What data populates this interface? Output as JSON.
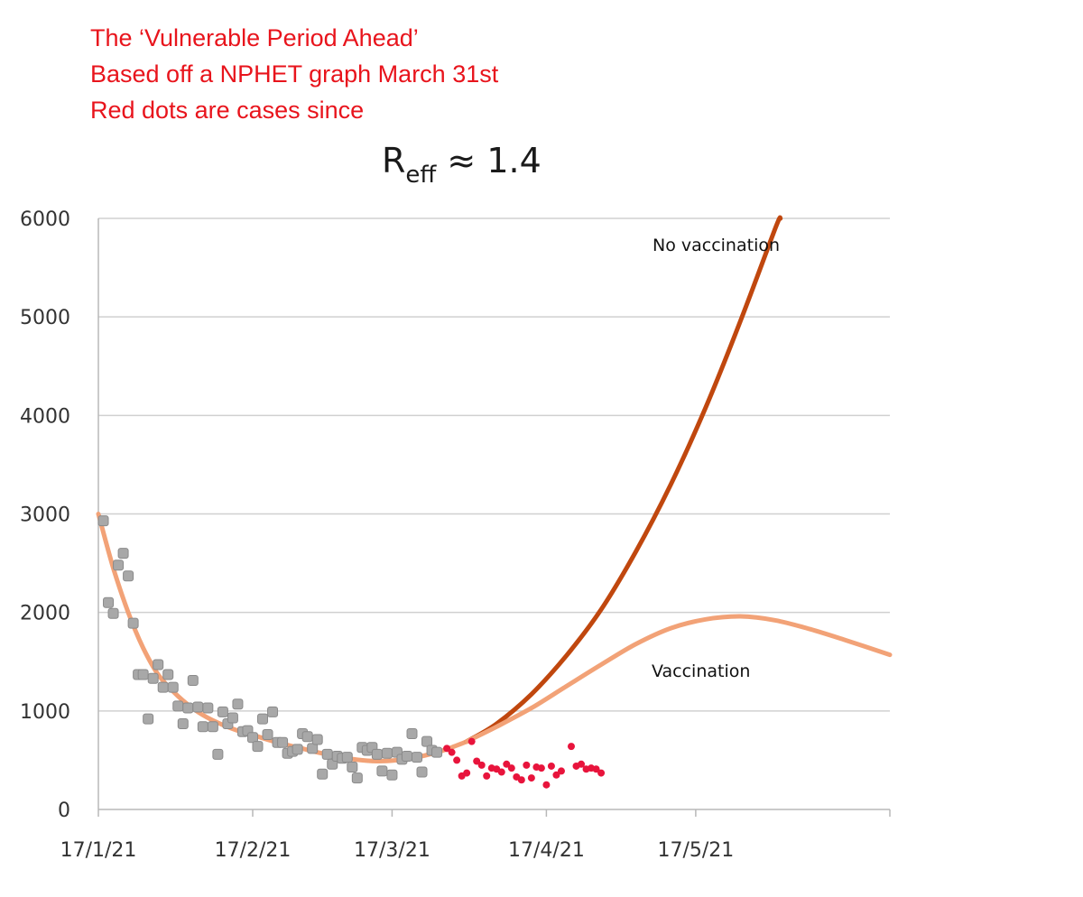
{
  "caption": {
    "line1": "The ‘Vulnerable Period Ahead’",
    "line2": "Based off a NPHET graph March 31st",
    "line3": "Red dots are cases since"
  },
  "colors": {
    "caption": "#e8141c",
    "no_vaccination": "#c0470e",
    "vaccination": "#f2a277",
    "historical_points": "#a8a8a8",
    "recent_points": "#e8143c",
    "grid": "#d0d0d0"
  },
  "chart_data": {
    "type": "scatter",
    "title": "R",
    "title_subscript": "eff",
    "title_suffix": " ≈ 1.4",
    "xlabel": "",
    "ylabel": "",
    "x_axis": "date",
    "xlim": [
      "2021-01-17",
      "2021-06-25"
    ],
    "ylim": [
      0,
      6000
    ],
    "grid": true,
    "x_ticks": [
      {
        "date": "2021-01-17",
        "label": "17/1/21"
      },
      {
        "date": "2021-02-17",
        "label": "17/2/21"
      },
      {
        "date": "2021-03-17",
        "label": "17/3/21"
      },
      {
        "date": "2021-04-17",
        "label": "17/4/21"
      },
      {
        "date": "2021-05-17",
        "label": "17/5/21"
      }
    ],
    "y_ticks": [
      0,
      1000,
      2000,
      3000,
      4000,
      5000,
      6000
    ],
    "annotations": [
      {
        "text": "No vaccination",
        "series": "no_vaccination"
      },
      {
        "text": "Vaccination",
        "series": "vaccination"
      }
    ],
    "series": [
      {
        "key": "model_fit",
        "kind": "line",
        "color": "#f2a277",
        "points": [
          [
            "2021-01-17",
            3000
          ],
          [
            "2021-01-20",
            2450
          ],
          [
            "2021-01-23",
            2000
          ],
          [
            "2021-01-26",
            1640
          ],
          [
            "2021-01-29",
            1370
          ],
          [
            "2021-02-02",
            1150
          ],
          [
            "2021-02-06",
            990
          ],
          [
            "2021-02-10",
            880
          ],
          [
            "2021-02-14",
            800
          ],
          [
            "2021-02-18",
            740
          ],
          [
            "2021-02-22",
            680
          ],
          [
            "2021-02-26",
            630
          ],
          [
            "2021-03-02",
            580
          ],
          [
            "2021-03-06",
            540
          ],
          [
            "2021-03-10",
            505
          ],
          [
            "2021-03-14",
            490
          ],
          [
            "2021-03-18",
            500
          ],
          [
            "2021-03-22",
            530
          ],
          [
            "2021-03-26",
            580
          ],
          [
            "2021-03-29",
            630
          ],
          [
            "2021-04-01",
            690
          ]
        ]
      },
      {
        "key": "no_vaccination",
        "kind": "line",
        "color": "#c0470e",
        "points": [
          [
            "2021-04-01",
            690
          ],
          [
            "2021-04-07",
            870
          ],
          [
            "2021-04-14",
            1170
          ],
          [
            "2021-04-21",
            1560
          ],
          [
            "2021-04-28",
            2030
          ],
          [
            "2021-05-05",
            2620
          ],
          [
            "2021-05-12",
            3300
          ],
          [
            "2021-05-19",
            4080
          ],
          [
            "2021-05-26",
            4960
          ],
          [
            "2021-06-02",
            5900
          ],
          [
            "2021-06-03",
            6000
          ]
        ]
      },
      {
        "key": "vaccination",
        "kind": "line",
        "color": "#f2a277",
        "points": [
          [
            "2021-04-01",
            690
          ],
          [
            "2021-04-07",
            840
          ],
          [
            "2021-04-14",
            1030
          ],
          [
            "2021-04-21",
            1250
          ],
          [
            "2021-04-28",
            1470
          ],
          [
            "2021-05-05",
            1680
          ],
          [
            "2021-05-12",
            1840
          ],
          [
            "2021-05-19",
            1930
          ],
          [
            "2021-05-26",
            1960
          ],
          [
            "2021-06-02",
            1920
          ],
          [
            "2021-06-09",
            1830
          ],
          [
            "2021-06-16",
            1720
          ],
          [
            "2021-06-25",
            1570
          ]
        ]
      },
      {
        "key": "historical_cases",
        "kind": "scatter",
        "color": "#a8a8a8",
        "points": [
          [
            "2021-01-18",
            2930
          ],
          [
            "2021-01-19",
            2100
          ],
          [
            "2021-01-20",
            1990
          ],
          [
            "2021-01-21",
            2480
          ],
          [
            "2021-01-22",
            2600
          ],
          [
            "2021-01-23",
            2370
          ],
          [
            "2021-01-24",
            1890
          ],
          [
            "2021-01-25",
            1370
          ],
          [
            "2021-01-26",
            1370
          ],
          [
            "2021-01-27",
            920
          ],
          [
            "2021-01-28",
            1330
          ],
          [
            "2021-01-29",
            1470
          ],
          [
            "2021-01-30",
            1240
          ],
          [
            "2021-01-31",
            1370
          ],
          [
            "2021-02-01",
            1240
          ],
          [
            "2021-02-02",
            1050
          ],
          [
            "2021-02-03",
            870
          ],
          [
            "2021-02-04",
            1030
          ],
          [
            "2021-02-05",
            1310
          ],
          [
            "2021-02-06",
            1040
          ],
          [
            "2021-02-07",
            840
          ],
          [
            "2021-02-08",
            1030
          ],
          [
            "2021-02-09",
            840
          ],
          [
            "2021-02-10",
            560
          ],
          [
            "2021-02-11",
            990
          ],
          [
            "2021-02-12",
            870
          ],
          [
            "2021-02-13",
            930
          ],
          [
            "2021-02-14",
            1070
          ],
          [
            "2021-02-15",
            790
          ],
          [
            "2021-02-16",
            800
          ],
          [
            "2021-02-17",
            730
          ],
          [
            "2021-02-18",
            640
          ],
          [
            "2021-02-19",
            920
          ],
          [
            "2021-02-20",
            760
          ],
          [
            "2021-02-21",
            990
          ],
          [
            "2021-02-22",
            680
          ],
          [
            "2021-02-23",
            680
          ],
          [
            "2021-02-24",
            570
          ],
          [
            "2021-02-25",
            590
          ],
          [
            "2021-02-26",
            610
          ],
          [
            "2021-02-27",
            770
          ],
          [
            "2021-02-28",
            740
          ],
          [
            "2021-03-01",
            620
          ],
          [
            "2021-03-02",
            710
          ],
          [
            "2021-03-03",
            360
          ],
          [
            "2021-03-04",
            560
          ],
          [
            "2021-03-05",
            460
          ],
          [
            "2021-03-06",
            540
          ],
          [
            "2021-03-07",
            520
          ],
          [
            "2021-03-08",
            530
          ],
          [
            "2021-03-09",
            430
          ],
          [
            "2021-03-10",
            320
          ],
          [
            "2021-03-11",
            630
          ],
          [
            "2021-03-12",
            600
          ],
          [
            "2021-03-13",
            630
          ],
          [
            "2021-03-14",
            560
          ],
          [
            "2021-03-15",
            390
          ],
          [
            "2021-03-16",
            570
          ],
          [
            "2021-03-17",
            350
          ],
          [
            "2021-03-18",
            580
          ],
          [
            "2021-03-19",
            510
          ],
          [
            "2021-03-20",
            540
          ],
          [
            "2021-03-21",
            770
          ],
          [
            "2021-03-22",
            530
          ],
          [
            "2021-03-23",
            380
          ],
          [
            "2021-03-24",
            690
          ],
          [
            "2021-03-25",
            600
          ],
          [
            "2021-03-26",
            580
          ]
        ]
      },
      {
        "key": "recent_cases",
        "kind": "scatter",
        "color": "#e8143c",
        "points": [
          [
            "2021-03-28",
            620
          ],
          [
            "2021-03-29",
            580
          ],
          [
            "2021-03-30",
            500
          ],
          [
            "2021-03-31",
            340
          ],
          [
            "2021-04-01",
            370
          ],
          [
            "2021-04-02",
            690
          ],
          [
            "2021-04-03",
            490
          ],
          [
            "2021-04-04",
            450
          ],
          [
            "2021-04-05",
            340
          ],
          [
            "2021-04-06",
            420
          ],
          [
            "2021-04-07",
            410
          ],
          [
            "2021-04-08",
            380
          ],
          [
            "2021-04-09",
            460
          ],
          [
            "2021-04-10",
            420
          ],
          [
            "2021-04-11",
            330
          ],
          [
            "2021-04-12",
            300
          ],
          [
            "2021-04-13",
            450
          ],
          [
            "2021-04-14",
            320
          ],
          [
            "2021-04-15",
            430
          ],
          [
            "2021-04-16",
            420
          ],
          [
            "2021-04-17",
            250
          ],
          [
            "2021-04-18",
            440
          ],
          [
            "2021-04-19",
            350
          ],
          [
            "2021-04-20",
            390
          ],
          [
            "2021-04-22",
            640
          ],
          [
            "2021-04-23",
            440
          ],
          [
            "2021-04-24",
            460
          ],
          [
            "2021-04-25",
            410
          ],
          [
            "2021-04-26",
            420
          ],
          [
            "2021-04-27",
            410
          ],
          [
            "2021-04-28",
            370
          ]
        ]
      }
    ]
  }
}
